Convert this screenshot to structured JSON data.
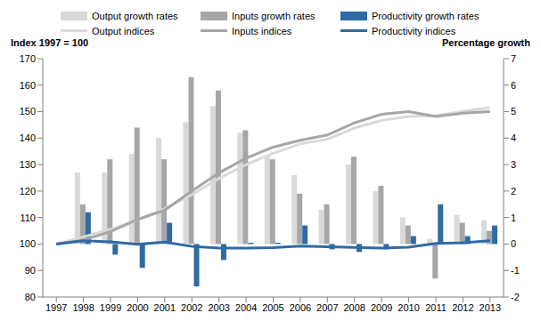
{
  "chart_data": {
    "type": "bar_line",
    "y_label": "Index 1997 = 100",
    "y2_label": "Percentage growth",
    "categories": [
      "1997",
      "1998",
      "1999",
      "2000",
      "2001",
      "2002",
      "2003",
      "2004",
      "2005",
      "2006",
      "2007",
      "2008",
      "2009",
      "2010",
      "2011",
      "2012",
      "2013"
    ],
    "series": [
      {
        "name": "Output growth rates",
        "type": "bar",
        "axis": "y2",
        "color": "#d9d9d9",
        "values": [
          null,
          2.7,
          2.7,
          3.4,
          4.0,
          4.6,
          5.2,
          4.2,
          3.3,
          2.6,
          1.3,
          3.0,
          2.0,
          1.0,
          0.2,
          1.1,
          0.9
        ]
      },
      {
        "name": "Inputs growth rates",
        "type": "bar",
        "axis": "y2",
        "color": "#a6a6a6",
        "values": [
          null,
          1.5,
          3.2,
          4.4,
          3.2,
          6.3,
          5.8,
          4.3,
          3.2,
          1.9,
          1.5,
          3.3,
          2.2,
          0.7,
          -1.3,
          0.8,
          0.5
        ]
      },
      {
        "name": "Productivity growth rates",
        "type": "bar",
        "axis": "y2",
        "color": "#2e6aa6",
        "values": [
          null,
          1.2,
          -0.4,
          -0.9,
          0.8,
          -1.6,
          -0.6,
          0.05,
          0.05,
          0.7,
          -0.2,
          -0.3,
          -0.2,
          0.3,
          1.5,
          0.3,
          0.7
        ]
      },
      {
        "name": "Output indices",
        "type": "line",
        "axis": "y",
        "color": "#d9d9d9",
        "values": [
          100,
          102.7,
          105.5,
          109.1,
          113.4,
          118.6,
          124.8,
          130,
          134.3,
          137.8,
          139.6,
          143.8,
          146.7,
          148.2,
          148.5,
          150.1,
          151.5
        ]
      },
      {
        "name": "Inputs indices",
        "type": "line",
        "axis": "y",
        "color": "#a6a6a6",
        "values": [
          100,
          101.5,
          104.7,
          109.3,
          112.8,
          120,
          126.9,
          132.4,
          136.6,
          139.2,
          141.2,
          145.8,
          149,
          150,
          148.2,
          149.4,
          150
        ]
      },
      {
        "name": "Productivity indices",
        "type": "line",
        "axis": "y",
        "color": "#2e6aa6",
        "values": [
          100,
          101.2,
          100.8,
          99.9,
          100.7,
          99.1,
          98.5,
          98.5,
          98.6,
          99.2,
          99,
          98.7,
          98.5,
          98.8,
          100.2,
          100.5,
          101.2
        ]
      }
    ],
    "ylim": [
      80,
      170
    ],
    "yticks": [
      80,
      90,
      100,
      110,
      120,
      130,
      140,
      150,
      160,
      170
    ],
    "y2lim": [
      -2,
      7
    ],
    "y2ticks": [
      -2,
      -1,
      0,
      1,
      2,
      3,
      4,
      5,
      6,
      7
    ],
    "grid": false,
    "legend": "top"
  }
}
